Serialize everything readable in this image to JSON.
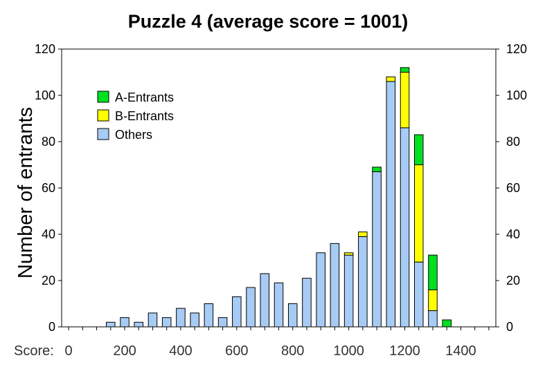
{
  "chart_data": {
    "type": "bar",
    "stacked": true,
    "title": "Puzzle 4 (average score = 1001)",
    "ylabel": "Number of entrants",
    "xlabel_prefix": "Score:",
    "ylim": [
      0,
      120
    ],
    "xlim": [
      -25,
      1525
    ],
    "y_ticks": [
      "0",
      "20",
      "40",
      "60",
      "80",
      "100",
      "120"
    ],
    "x_ticks": [
      "0",
      "200",
      "400",
      "600",
      "800",
      "1000",
      "1200",
      "1400"
    ],
    "x_tick_values": [
      0,
      200,
      400,
      600,
      800,
      1000,
      1200,
      1400
    ],
    "bin_width": 50,
    "x": [
      0,
      50,
      100,
      150,
      200,
      250,
      300,
      350,
      400,
      450,
      500,
      550,
      600,
      650,
      700,
      750,
      800,
      850,
      900,
      950,
      1000,
      1050,
      1100,
      1150,
      1200,
      1250,
      1300,
      1350,
      1400,
      1450,
      1500
    ],
    "series": [
      {
        "name": "Others",
        "color": "#a6cbf5",
        "values": [
          0,
          0,
          0,
          2,
          4,
          2,
          6,
          4,
          8,
          6,
          10,
          4,
          13,
          17,
          23,
          19,
          10,
          21,
          32,
          36,
          31,
          39,
          67,
          106,
          86,
          28,
          7,
          0,
          0,
          0,
          0
        ]
      },
      {
        "name": "B-Entrants",
        "color": "#ffff00",
        "values": [
          0,
          0,
          0,
          0,
          0,
          0,
          0,
          0,
          0,
          0,
          0,
          0,
          0,
          0,
          0,
          0,
          0,
          0,
          0,
          0,
          1,
          2,
          0,
          2,
          24,
          42,
          9,
          0,
          0,
          0,
          0
        ]
      },
      {
        "name": "A-Entrants",
        "color": "#00e020",
        "values": [
          0,
          0,
          0,
          0,
          0,
          0,
          0,
          0,
          0,
          0,
          0,
          0,
          0,
          0,
          0,
          0,
          0,
          0,
          0,
          0,
          0,
          0,
          2,
          0,
          2,
          13,
          15,
          3,
          0,
          0,
          0
        ]
      }
    ],
    "legend": {
      "placement": "top-left",
      "entries": [
        {
          "label": "A-Entrants",
          "color": "#00e020"
        },
        {
          "label": "B-Entrants",
          "color": "#ffff00"
        },
        {
          "label": "Others",
          "color": "#a6cbf5"
        }
      ]
    },
    "grid": false,
    "right_axis_mirrored": true
  }
}
